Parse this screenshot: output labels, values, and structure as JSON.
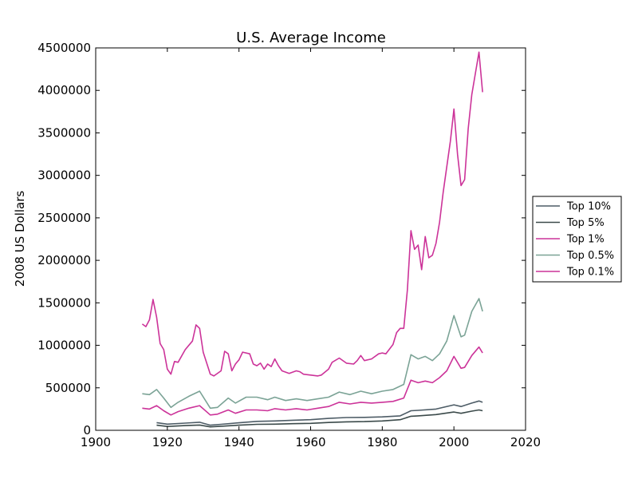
{
  "chart_data": {
    "type": "line",
    "title": "U.S. Average Income",
    "xlabel": "",
    "ylabel": "2008 US Dollars",
    "xlim": [
      1900,
      2020
    ],
    "ylim": [
      0,
      4500000
    ],
    "x_ticks": [
      1900,
      1920,
      1940,
      1960,
      1980,
      2000,
      2020
    ],
    "y_ticks": [
      0,
      500000,
      1000000,
      1500000,
      2000000,
      2500000,
      3000000,
      3500000,
      4000000,
      4500000
    ],
    "grid": false,
    "legend_placement": "outside-right",
    "series": [
      {
        "name": "Top 10%",
        "color": "#4d5c66",
        "points": [
          [
            1917,
            90000
          ],
          [
            1920,
            72000
          ],
          [
            1925,
            85000
          ],
          [
            1929,
            95000
          ],
          [
            1932,
            60000
          ],
          [
            1935,
            70000
          ],
          [
            1940,
            88000
          ],
          [
            1945,
            105000
          ],
          [
            1950,
            110000
          ],
          [
            1955,
            118000
          ],
          [
            1960,
            125000
          ],
          [
            1965,
            140000
          ],
          [
            1970,
            150000
          ],
          [
            1975,
            152000
          ],
          [
            1980,
            158000
          ],
          [
            1985,
            170000
          ],
          [
            1988,
            230000
          ],
          [
            1990,
            235000
          ],
          [
            1995,
            250000
          ],
          [
            2000,
            300000
          ],
          [
            2002,
            280000
          ],
          [
            2005,
            320000
          ],
          [
            2007,
            345000
          ],
          [
            2008,
            330000
          ]
        ]
      },
      {
        "name": "Top 5%",
        "color": "#3b4a4a",
        "points": [
          [
            1917,
            60000
          ],
          [
            1920,
            45000
          ],
          [
            1925,
            55000
          ],
          [
            1929,
            62000
          ],
          [
            1932,
            40000
          ],
          [
            1935,
            48000
          ],
          [
            1940,
            60000
          ],
          [
            1945,
            70000
          ],
          [
            1950,
            72000
          ],
          [
            1955,
            78000
          ],
          [
            1960,
            82000
          ],
          [
            1965,
            92000
          ],
          [
            1970,
            100000
          ],
          [
            1975,
            102000
          ],
          [
            1980,
            110000
          ],
          [
            1985,
            125000
          ],
          [
            1988,
            165000
          ],
          [
            1990,
            170000
          ],
          [
            1995,
            185000
          ],
          [
            2000,
            215000
          ],
          [
            2002,
            200000
          ],
          [
            2005,
            225000
          ],
          [
            2007,
            240000
          ],
          [
            2008,
            230000
          ]
        ]
      },
      {
        "name": "Top 1%",
        "color": "#cc3399",
        "points": [
          [
            1913,
            260000
          ],
          [
            1915,
            250000
          ],
          [
            1917,
            290000
          ],
          [
            1919,
            230000
          ],
          [
            1921,
            180000
          ],
          [
            1923,
            220000
          ],
          [
            1926,
            260000
          ],
          [
            1929,
            290000
          ],
          [
            1932,
            180000
          ],
          [
            1934,
            190000
          ],
          [
            1937,
            240000
          ],
          [
            1939,
            200000
          ],
          [
            1942,
            240000
          ],
          [
            1945,
            240000
          ],
          [
            1948,
            230000
          ],
          [
            1950,
            255000
          ],
          [
            1953,
            240000
          ],
          [
            1956,
            255000
          ],
          [
            1959,
            240000
          ],
          [
            1962,
            260000
          ],
          [
            1965,
            280000
          ],
          [
            1968,
            330000
          ],
          [
            1971,
            310000
          ],
          [
            1974,
            330000
          ],
          [
            1977,
            320000
          ],
          [
            1980,
            330000
          ],
          [
            1983,
            340000
          ],
          [
            1986,
            380000
          ],
          [
            1988,
            590000
          ],
          [
            1990,
            560000
          ],
          [
            1992,
            580000
          ],
          [
            1994,
            560000
          ],
          [
            1996,
            620000
          ],
          [
            1998,
            700000
          ],
          [
            2000,
            870000
          ],
          [
            2002,
            730000
          ],
          [
            2003,
            740000
          ],
          [
            2005,
            880000
          ],
          [
            2007,
            980000
          ],
          [
            2008,
            910000
          ]
        ]
      },
      {
        "name": "Top 0.5%",
        "color": "#7ba396",
        "points": [
          [
            1913,
            430000
          ],
          [
            1915,
            420000
          ],
          [
            1917,
            480000
          ],
          [
            1919,
            380000
          ],
          [
            1921,
            270000
          ],
          [
            1923,
            330000
          ],
          [
            1926,
            400000
          ],
          [
            1929,
            460000
          ],
          [
            1932,
            260000
          ],
          [
            1934,
            270000
          ],
          [
            1937,
            380000
          ],
          [
            1939,
            320000
          ],
          [
            1942,
            390000
          ],
          [
            1945,
            390000
          ],
          [
            1948,
            360000
          ],
          [
            1950,
            390000
          ],
          [
            1953,
            350000
          ],
          [
            1956,
            370000
          ],
          [
            1959,
            350000
          ],
          [
            1962,
            370000
          ],
          [
            1965,
            390000
          ],
          [
            1968,
            450000
          ],
          [
            1971,
            420000
          ],
          [
            1974,
            460000
          ],
          [
            1977,
            430000
          ],
          [
            1980,
            460000
          ],
          [
            1983,
            480000
          ],
          [
            1986,
            540000
          ],
          [
            1988,
            890000
          ],
          [
            1990,
            840000
          ],
          [
            1992,
            870000
          ],
          [
            1994,
            820000
          ],
          [
            1996,
            900000
          ],
          [
            1998,
            1050000
          ],
          [
            2000,
            1350000
          ],
          [
            2002,
            1100000
          ],
          [
            2003,
            1120000
          ],
          [
            2005,
            1400000
          ],
          [
            2007,
            1550000
          ],
          [
            2008,
            1400000
          ]
        ]
      },
      {
        "name": "Top 0.1%",
        "color": "#cc3399",
        "points": [
          [
            1913,
            1250000
          ],
          [
            1914,
            1220000
          ],
          [
            1915,
            1300000
          ],
          [
            1916,
            1540000
          ],
          [
            1917,
            1330000
          ],
          [
            1918,
            1020000
          ],
          [
            1919,
            950000
          ],
          [
            1920,
            720000
          ],
          [
            1921,
            660000
          ],
          [
            1922,
            810000
          ],
          [
            1923,
            800000
          ],
          [
            1925,
            950000
          ],
          [
            1927,
            1050000
          ],
          [
            1928,
            1240000
          ],
          [
            1929,
            1200000
          ],
          [
            1930,
            920000
          ],
          [
            1932,
            660000
          ],
          [
            1933,
            640000
          ],
          [
            1935,
            700000
          ],
          [
            1936,
            930000
          ],
          [
            1937,
            900000
          ],
          [
            1938,
            700000
          ],
          [
            1939,
            780000
          ],
          [
            1940,
            830000
          ],
          [
            1941,
            920000
          ],
          [
            1943,
            900000
          ],
          [
            1944,
            780000
          ],
          [
            1945,
            760000
          ],
          [
            1946,
            790000
          ],
          [
            1947,
            720000
          ],
          [
            1948,
            780000
          ],
          [
            1949,
            750000
          ],
          [
            1950,
            840000
          ],
          [
            1951,
            760000
          ],
          [
            1952,
            700000
          ],
          [
            1954,
            670000
          ],
          [
            1956,
            700000
          ],
          [
            1957,
            690000
          ],
          [
            1958,
            660000
          ],
          [
            1960,
            650000
          ],
          [
            1962,
            640000
          ],
          [
            1963,
            650000
          ],
          [
            1965,
            720000
          ],
          [
            1966,
            800000
          ],
          [
            1968,
            850000
          ],
          [
            1970,
            790000
          ],
          [
            1972,
            780000
          ],
          [
            1973,
            820000
          ],
          [
            1974,
            880000
          ],
          [
            1975,
            820000
          ],
          [
            1977,
            840000
          ],
          [
            1979,
            900000
          ],
          [
            1980,
            910000
          ],
          [
            1981,
            900000
          ],
          [
            1983,
            1010000
          ],
          [
            1984,
            1150000
          ],
          [
            1985,
            1200000
          ],
          [
            1986,
            1200000
          ],
          [
            1987,
            1650000
          ],
          [
            1988,
            2350000
          ],
          [
            1989,
            2130000
          ],
          [
            1990,
            2180000
          ],
          [
            1991,
            1890000
          ],
          [
            1992,
            2280000
          ],
          [
            1993,
            2030000
          ],
          [
            1994,
            2060000
          ],
          [
            1995,
            2200000
          ],
          [
            1996,
            2450000
          ],
          [
            1997,
            2800000
          ],
          [
            1998,
            3100000
          ],
          [
            1999,
            3400000
          ],
          [
            2000,
            3780000
          ],
          [
            2001,
            3250000
          ],
          [
            2002,
            2880000
          ],
          [
            2003,
            2950000
          ],
          [
            2004,
            3550000
          ],
          [
            2005,
            3950000
          ],
          [
            2006,
            4200000
          ],
          [
            2007,
            4450000
          ],
          [
            2008,
            3980000
          ]
        ]
      }
    ]
  }
}
